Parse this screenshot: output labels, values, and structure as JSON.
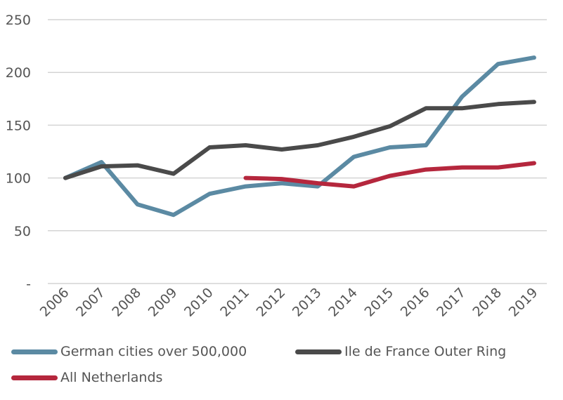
{
  "chart_data": {
    "type": "line",
    "title": "",
    "xlabel": "",
    "ylabel": "",
    "categories": [
      "2006",
      "2007",
      "2008",
      "2009",
      "2010",
      "2011",
      "2012",
      "2013",
      "2014",
      "2015",
      "2016",
      "2017",
      "2018",
      "2019"
    ],
    "ylim": [
      0,
      250
    ],
    "yticks": [
      {
        "value": 0,
        "label": "-"
      },
      {
        "value": 50,
        "label": "50"
      },
      {
        "value": 100,
        "label": "100"
      },
      {
        "value": 150,
        "label": "150"
      },
      {
        "value": 200,
        "label": "200"
      },
      {
        "value": 250,
        "label": "250"
      }
    ],
    "grid": true,
    "legend_position": "bottom",
    "series": [
      {
        "name": "German cities over 500,000",
        "color": "#5b8aa3",
        "values": [
          100,
          115,
          75,
          65,
          85,
          92,
          95,
          92,
          120,
          129,
          131,
          177,
          208,
          214
        ]
      },
      {
        "name": "Ile de France Outer Ring",
        "color": "#4a4a4a",
        "values": [
          100,
          111,
          112,
          104,
          129,
          131,
          127,
          131,
          139,
          149,
          166,
          166,
          170,
          172
        ]
      },
      {
        "name": "All Netherlands",
        "color": "#b5273d",
        "values": [
          null,
          null,
          null,
          null,
          null,
          100,
          99,
          95,
          92,
          102,
          108,
          110,
          110,
          114
        ]
      }
    ]
  },
  "legend": {
    "items": [
      {
        "label": "German cities over 500,000",
        "color": "#5b8aa3"
      },
      {
        "label": "Ile de France Outer Ring",
        "color": "#4a4a4a"
      },
      {
        "label": "All Netherlands",
        "color": "#b5273d"
      }
    ]
  }
}
